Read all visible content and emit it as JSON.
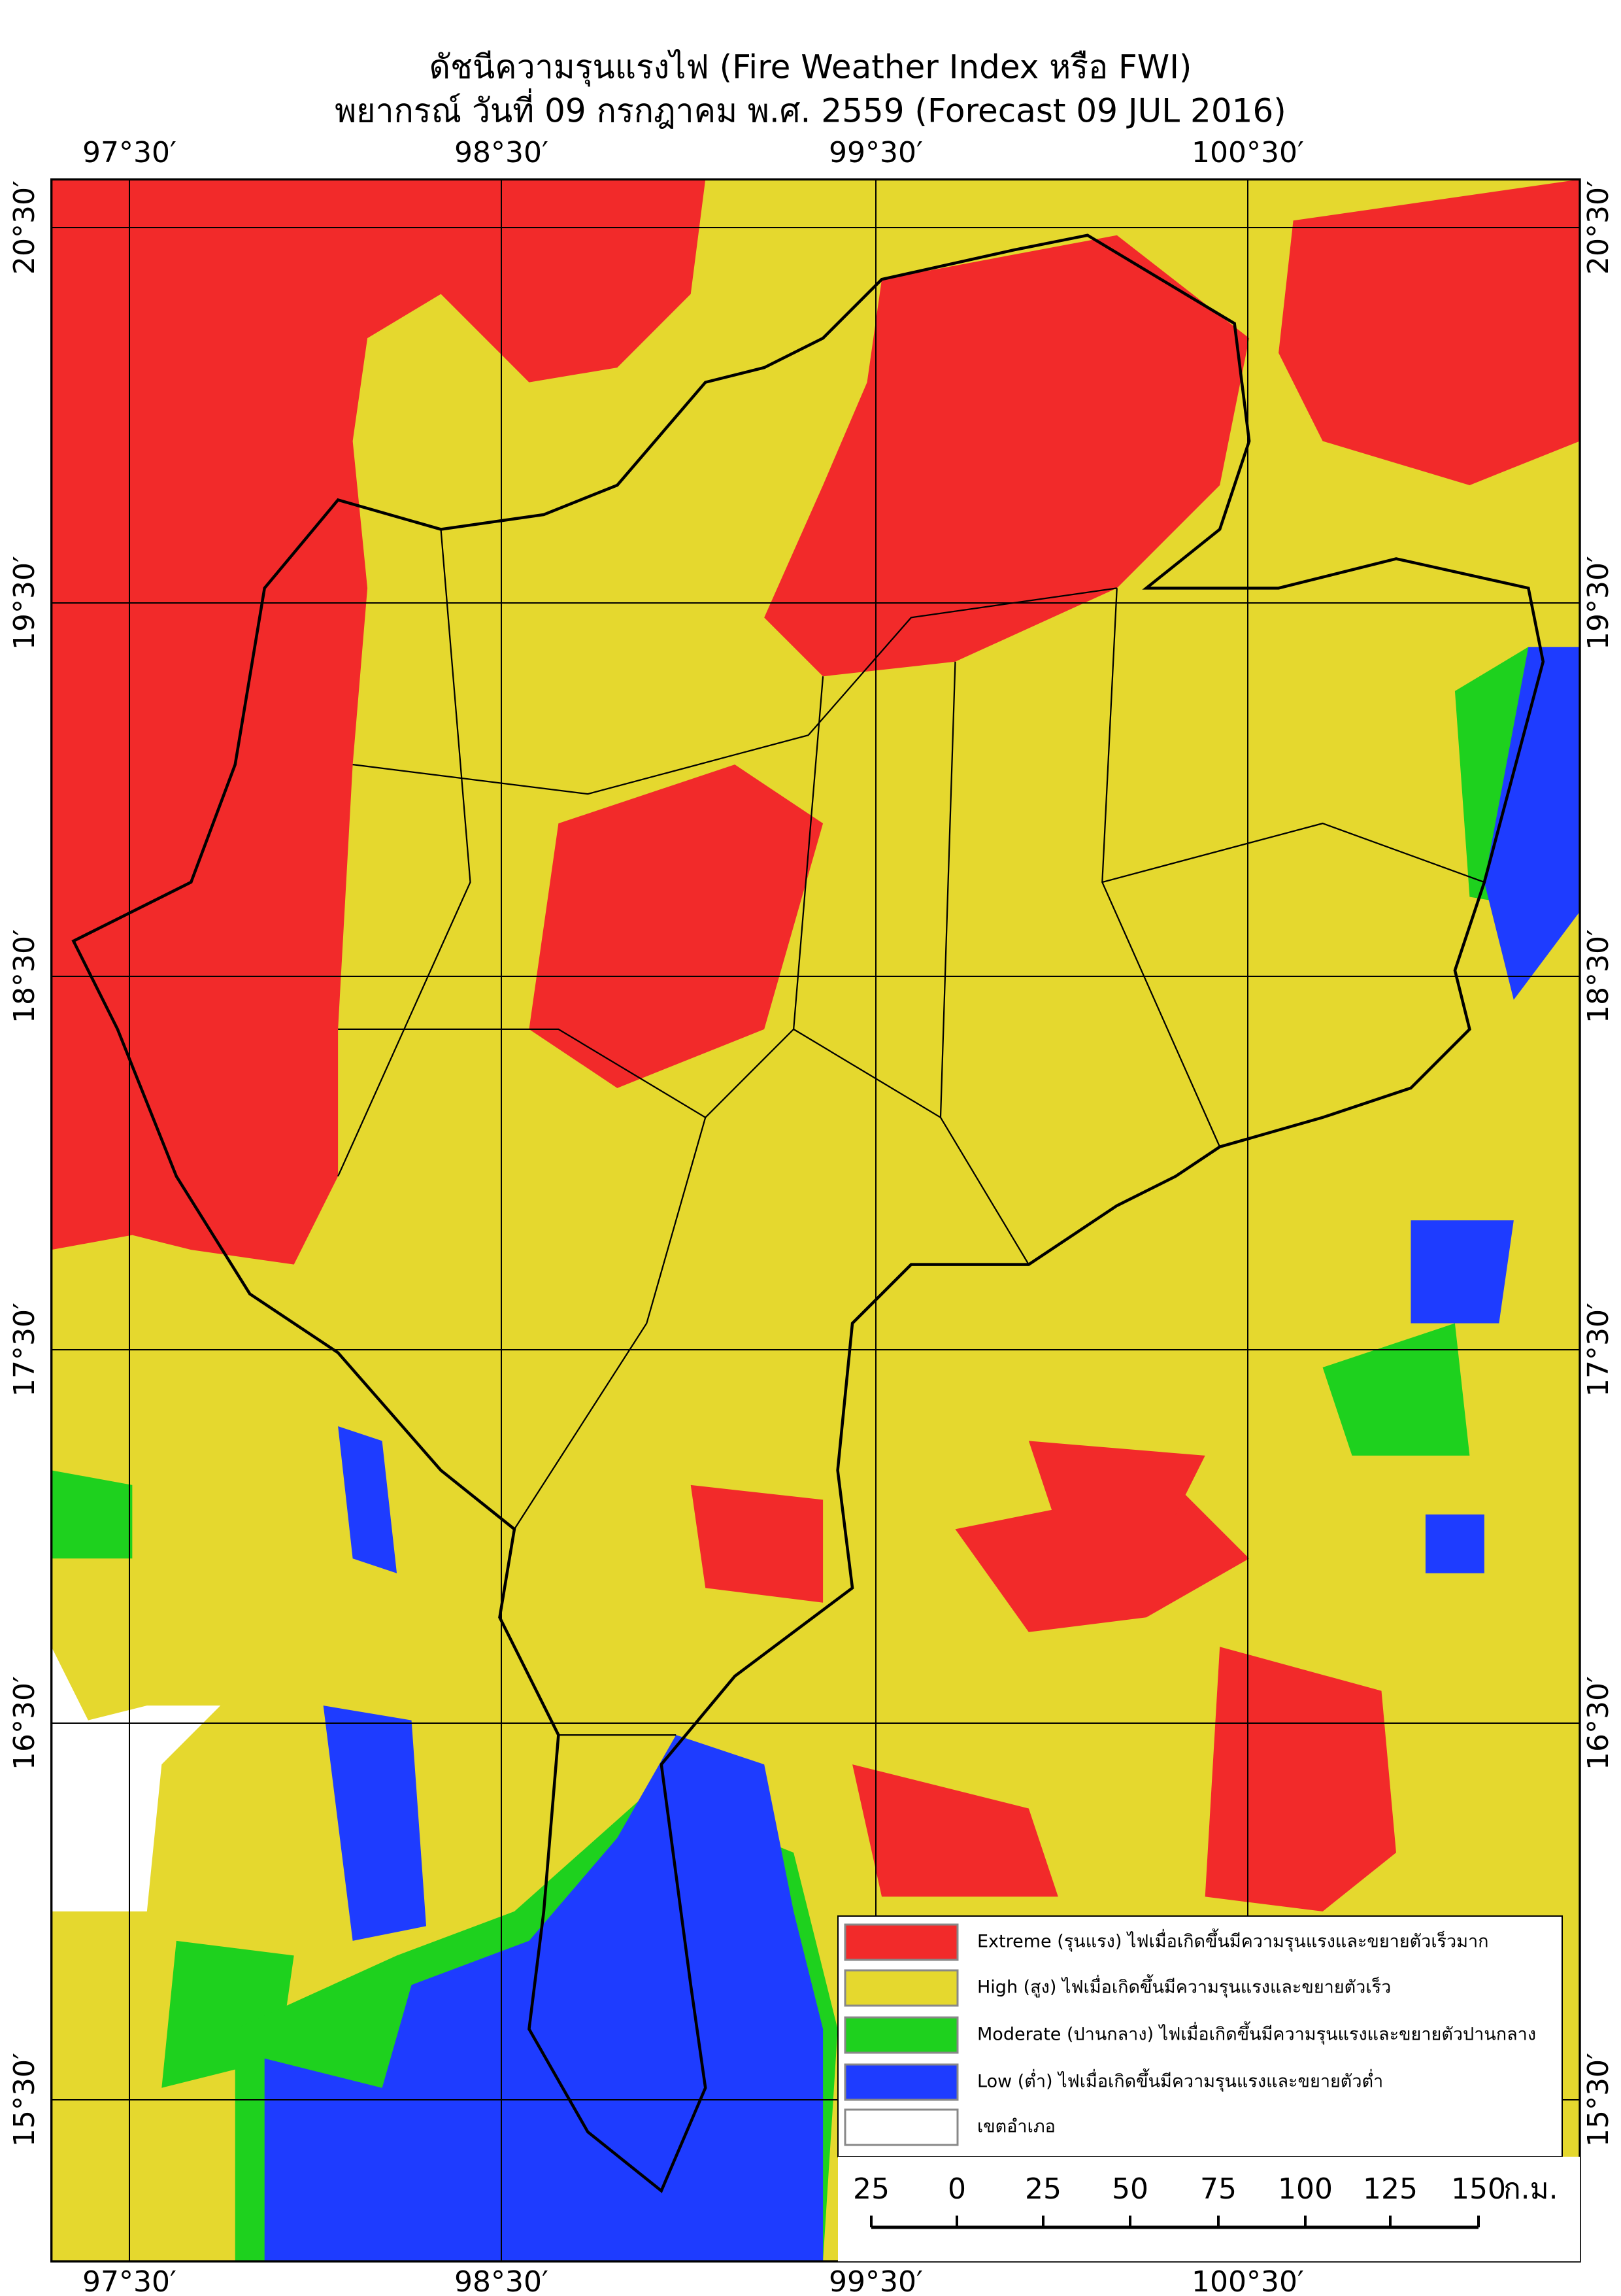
{
  "title": "ดัชนีความรุนแรงไฟ (Fire Weather Index หรือ FWI)",
  "subtitle": "พยากรณ์ วันที่ 09 กรกฎาคม พ.ศ. 2559 (Forecast 09 JUL 2016)",
  "longitude_labels": [
    "97°30′",
    "98°30′",
    "99°30′",
    "100°30′"
  ],
  "latitude_labels": [
    "20°30′",
    "19°30′",
    "18°30′",
    "17°30′",
    "16°30′",
    "15°30′"
  ],
  "legend": [
    {
      "label": "Extreme (รุนแรง) ไฟเมื่อเกิดขึ้นมีความรุนแรงและขยายตัวเร็วมาก",
      "color": "#f22a2a"
    },
    {
      "label": "High (สูง) ไฟเมื่อเกิดขึ้นมีความรุนแรงและขยายตัวเร็ว",
      "color": "#e5d82e"
    },
    {
      "label": "Moderate (ปานกลาง) ไฟเมื่อเกิดขึ้นมีความรุนแรงและขยายตัวปานกลาง",
      "color": "#1ed11e"
    },
    {
      "label": "Low (ต่ำ) ไฟเมื่อเกิดขึ้นมีความรุนแรงและขยายตัวต่ำ",
      "color": "#1e3cff"
    },
    {
      "label": "เขตอำเภอ",
      "color": "#ffffff"
    }
  ],
  "scale_bar": {
    "labels": [
      25,
      0,
      25,
      50,
      75,
      100,
      125,
      150
    ],
    "unit": "ก.ม."
  }
}
